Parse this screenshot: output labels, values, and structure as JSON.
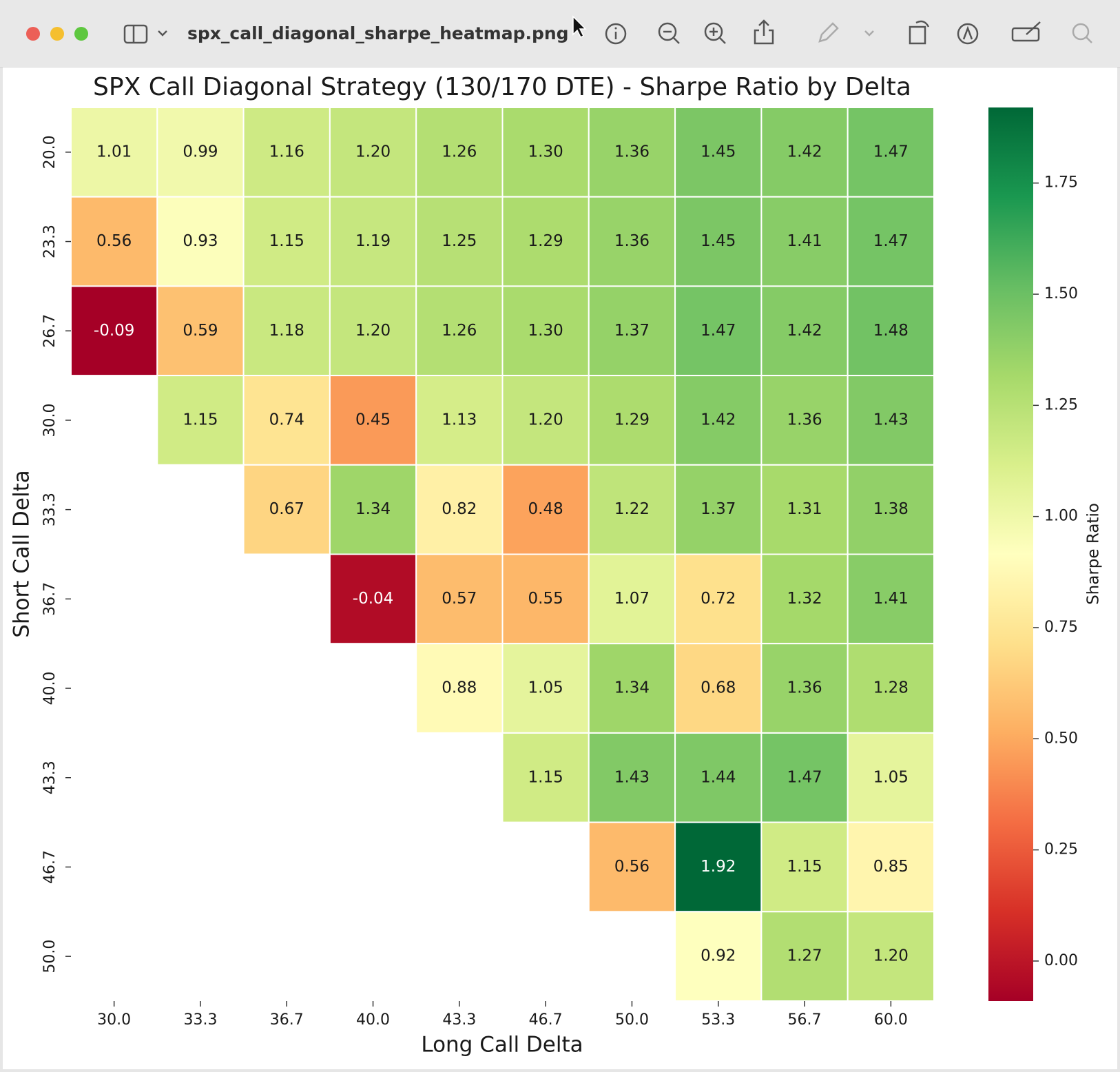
{
  "window": {
    "title": "spx_call_diagonal_sharpe_heatmap.png"
  },
  "chart_data": {
    "type": "heatmap",
    "title": "SPX Call Diagonal Strategy (130/170 DTE) - Sharpe Ratio by Delta",
    "x_label": "Long Call Delta",
    "y_label": "Short Call Delta",
    "colorbar_label": "Sharpe Ratio",
    "colormap": "RdYlGn",
    "x_categories": [
      "30.0",
      "33.3",
      "36.7",
      "40.0",
      "43.3",
      "46.7",
      "50.0",
      "53.3",
      "56.7",
      "60.0"
    ],
    "y_categories": [
      "20.0",
      "23.3",
      "26.7",
      "30.0",
      "33.3",
      "36.7",
      "40.0",
      "43.3",
      "46.7",
      "50.0"
    ],
    "values": [
      [
        1.01,
        0.99,
        1.16,
        1.2,
        1.26,
        1.3,
        1.36,
        1.45,
        1.42,
        1.47
      ],
      [
        0.56,
        0.93,
        1.15,
        1.19,
        1.25,
        1.29,
        1.36,
        1.45,
        1.41,
        1.47
      ],
      [
        -0.09,
        0.59,
        1.18,
        1.2,
        1.26,
        1.3,
        1.37,
        1.47,
        1.42,
        1.48
      ],
      [
        null,
        1.15,
        0.74,
        0.45,
        1.13,
        1.2,
        1.29,
        1.42,
        1.36,
        1.43
      ],
      [
        null,
        null,
        0.67,
        1.34,
        0.82,
        0.48,
        1.22,
        1.37,
        1.31,
        1.38
      ],
      [
        null,
        null,
        null,
        -0.04,
        0.57,
        0.55,
        1.07,
        0.72,
        1.32,
        1.41
      ],
      [
        null,
        null,
        null,
        null,
        0.88,
        1.05,
        1.34,
        0.68,
        1.36,
        1.28
      ],
      [
        null,
        null,
        null,
        null,
        null,
        1.15,
        1.43,
        1.44,
        1.47,
        1.05
      ],
      [
        null,
        null,
        null,
        null,
        null,
        null,
        0.56,
        1.92,
        1.15,
        0.85
      ],
      [
        null,
        null,
        null,
        null,
        null,
        null,
        null,
        0.92,
        1.27,
        1.2
      ]
    ],
    "value_labels": [
      [
        "1.01",
        "0.99",
        "1.16",
        "1.20",
        "1.26",
        "1.30",
        "1.36",
        "1.45",
        "1.42",
        "1.47"
      ],
      [
        "0.56",
        "0.93",
        "1.15",
        "1.19",
        "1.25",
        "1.29",
        "1.36",
        "1.45",
        "1.41",
        "1.47"
      ],
      [
        "-0.09",
        "0.59",
        "1.18",
        "1.20",
        "1.26",
        "1.30",
        "1.37",
        "1.47",
        "1.42",
        "1.48"
      ],
      [
        null,
        "1.15",
        "0.74",
        "0.45",
        "1.13",
        "1.20",
        "1.29",
        "1.42",
        "1.36",
        "1.43"
      ],
      [
        null,
        null,
        "0.67",
        "1.34",
        "0.82",
        "0.48",
        "1.22",
        "1.37",
        "1.31",
        "1.38"
      ],
      [
        null,
        null,
        null,
        "-0.04",
        "0.57",
        "0.55",
        "1.07",
        "0.72",
        "1.32",
        "1.41"
      ],
      [
        null,
        null,
        null,
        null,
        "0.88",
        "1.05",
        "1.34",
        "0.68",
        "1.36",
        "1.28"
      ],
      [
        null,
        null,
        null,
        null,
        null,
        "1.15",
        "1.43",
        "1.44",
        "1.47",
        "1.05"
      ],
      [
        null,
        null,
        null,
        null,
        null,
        null,
        "0.56",
        "1.92",
        "1.15",
        "0.85"
      ],
      [
        null,
        null,
        null,
        null,
        null,
        null,
        null,
        "0.92",
        "1.27",
        "1.20"
      ]
    ],
    "zlim": [
      -0.09,
      1.92
    ],
    "zticks": [
      {
        "value": 0,
        "label": "0.00"
      },
      0.25,
      {
        "value": 0.5,
        "label": "0.50"
      },
      0.75,
      {
        "value": 1,
        "label": "1.00"
      },
      1.25,
      {
        "value": 1.5,
        "label": "1.50"
      },
      1.75
    ]
  }
}
